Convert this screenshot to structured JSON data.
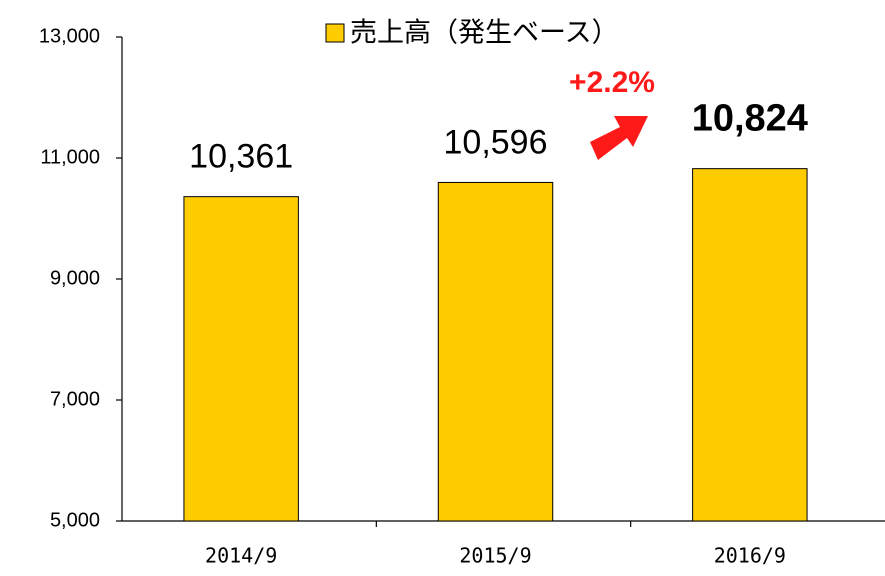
{
  "chart_data": {
    "type": "bar",
    "categories": [
      "2014/9",
      "2015/9",
      "2016/9"
    ],
    "series": [
      {
        "name": "売上高（発生ベース）",
        "color": "#ffcc00",
        "values": [
          10361,
          10596,
          10824
        ],
        "value_labels": [
          "10,361",
          "10,596",
          "10,824"
        ]
      }
    ],
    "annotation": "+2.2%",
    "ylim": [
      5000,
      13000
    ],
    "yticks": [
      {
        "value": 5000,
        "label": "5,000"
      },
      {
        "value": 7000,
        "label": "7,000"
      },
      {
        "value": 9000,
        "label": "9,000"
      },
      {
        "value": 11000,
        "label": "11,000"
      },
      {
        "value": 13000,
        "label": "13,000"
      }
    ],
    "grid": false
  }
}
